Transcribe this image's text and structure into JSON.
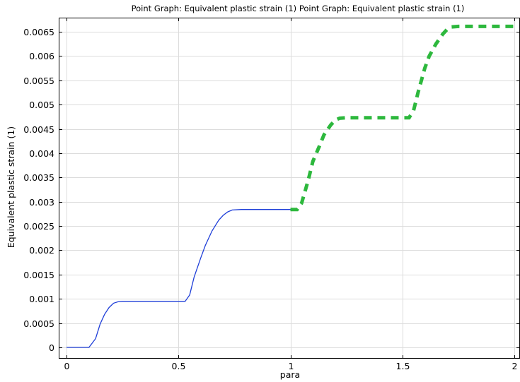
{
  "chart_data": {
    "type": "line",
    "title": "Point Graph: Equivalent plastic strain (1)  Point Graph: Equivalent plastic strain (1)",
    "xlabel": "para",
    "ylabel": "Equivalent plastic strain (1)",
    "xlim": [
      0,
      2
    ],
    "ylim": [
      0,
      0.0065
    ],
    "xticks": [
      0,
      0.5,
      1,
      1.5,
      2
    ],
    "xtick_labels": [
      "0",
      "0.5",
      "1",
      "1.5",
      "2"
    ],
    "yticks": [
      0,
      0.0005,
      0.001,
      0.0015,
      0.002,
      0.0025,
      0.003,
      0.0035,
      0.004,
      0.0045,
      0.005,
      0.0055,
      0.006,
      0.0065
    ],
    "ytick_labels": [
      "0",
      "0.0005",
      "0.001",
      "0.0015",
      "0.002",
      "0.0025",
      "0.003",
      "0.0035",
      "0.004",
      "0.0045",
      "0.005",
      "0.0055",
      "0.006",
      "0.0065"
    ],
    "grid": true,
    "legend": "none",
    "series": [
      {
        "color": "#1f3fd8",
        "style": "solid",
        "x": [
          0,
          0.1,
          0.13,
          0.15,
          0.17,
          0.19,
          0.21,
          0.23,
          0.25,
          0.3,
          0.4,
          0.5,
          0.53,
          0.55,
          0.57,
          0.6,
          0.62,
          0.65,
          0.68,
          0.7,
          0.72,
          0.74,
          0.78,
          0.85,
          0.95,
          1.0
        ],
        "y": [
          0,
          0,
          0.00018,
          0.00048,
          0.00068,
          0.00082,
          0.00091,
          0.00094,
          0.00095,
          0.00095,
          0.00095,
          0.00095,
          0.00095,
          0.00108,
          0.00145,
          0.00185,
          0.0021,
          0.0024,
          0.00262,
          0.00272,
          0.00279,
          0.00283,
          0.00284,
          0.00284,
          0.00284,
          0.00284
        ]
      },
      {
        "color": "#2db83d",
        "style": "dashed",
        "x": [
          1.0,
          1.03,
          1.05,
          1.08,
          1.1,
          1.13,
          1.15,
          1.18,
          1.2,
          1.22,
          1.25,
          1.3,
          1.4,
          1.5,
          1.53,
          1.55,
          1.57,
          1.6,
          1.62,
          1.65,
          1.68,
          1.7,
          1.72,
          1.75,
          1.8,
          1.9,
          2.0
        ],
        "y": [
          0.00284,
          0.00284,
          0.00297,
          0.00345,
          0.00383,
          0.00415,
          0.00438,
          0.00458,
          0.00468,
          0.00472,
          0.00473,
          0.00473,
          0.00473,
          0.00473,
          0.00473,
          0.00488,
          0.00525,
          0.00575,
          0.006,
          0.00625,
          0.00645,
          0.00655,
          0.0066,
          0.00661,
          0.00661,
          0.00661,
          0.00661
        ]
      }
    ]
  }
}
